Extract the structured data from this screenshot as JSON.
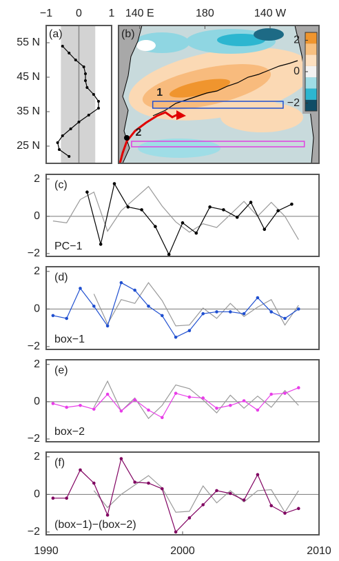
{
  "chart_data": [
    {
      "type": "profile",
      "panel_label": "(a)",
      "xlim": [
        -1,
        1
      ],
      "xticks": [
        {
          "value": -1,
          "label": "−1"
        },
        0,
        1
      ],
      "ylim": [
        20,
        60
      ],
      "yticks": [
        {
          "value": 25,
          "label": "25 N"
        },
        {
          "value": 35,
          "label": "35 N"
        },
        {
          "value": 45,
          "label": "45 N"
        },
        {
          "value": 55,
          "label": "55 N"
        }
      ],
      "shade": [
        -0.55,
        0.5
      ],
      "color": "#000000",
      "lats": [
        54,
        52,
        50,
        48,
        46,
        44,
        42,
        40,
        38,
        36,
        34,
        32,
        30,
        28,
        26,
        24,
        22
      ],
      "values": [
        -0.5,
        -0.3,
        -0.1,
        0.15,
        0.2,
        0.2,
        0.25,
        0.45,
        0.6,
        0.6,
        0.3,
        0.0,
        -0.25,
        -0.5,
        -0.65,
        -0.6,
        -0.3
      ]
    },
    {
      "type": "map",
      "panel_label": "(b)",
      "xlim": [
        127,
        250
      ],
      "xticks": [
        {
          "value": 140,
          "label": "140 E"
        },
        180,
        {
          "value": 220,
          "label": "140 W"
        }
      ],
      "ylim": [
        20,
        60
      ],
      "boxes": [
        {
          "label": "1",
          "color": "#2050d0",
          "lon": [
            148,
            228
          ],
          "lat": [
            36,
            38
          ]
        },
        {
          "label": "2",
          "color": "#e040e0",
          "lon": [
            135,
            241
          ],
          "lat": [
            24.8,
            26.4
          ]
        }
      ],
      "colorbar": {
        "lim": [
          -2.5,
          2.5
        ],
        "ticks": [
          {
            "value": -2,
            "label": "−2"
          },
          0,
          2
        ],
        "colors": [
          "#0f4d66",
          "#2cb6d0",
          "#9fdde6",
          "#f2f2f2",
          "#fde0c0",
          "#f8c080",
          "#f0952e"
        ]
      }
    },
    {
      "type": "line",
      "panel_label": "(c)",
      "label": "PC−1",
      "xlim": [
        1990,
        2010
      ],
      "ylim": [
        -2.15,
        2.25
      ],
      "yticks": [
        {
          "value": -2,
          "label": "−2"
        },
        0,
        2
      ],
      "hline": 0,
      "series": [
        {
          "color": "#999999",
          "markers": false,
          "x": [
            1990.5,
            1991.5,
            1992.5,
            1993.5,
            1994.5,
            1995.5,
            1996.5,
            1997.5,
            1998.5,
            1999.5,
            2000.5,
            2001.5,
            2002.5,
            2003.5,
            2004.5,
            2005.5,
            2006.5,
            2007.5,
            2008.5
          ],
          "values": [
            -0.25,
            -0.35,
            0.9,
            1.3,
            -0.8,
            0.3,
            0.95,
            1.6,
            0.55,
            -0.3,
            -0.85,
            -0.4,
            -0.6,
            0.1,
            0.8,
            0.0,
            0.75,
            0.0,
            -1.25
          ]
        },
        {
          "color": "#000000",
          "markers": true,
          "x": [
            1993,
            1994,
            1995,
            1996,
            1997,
            1998,
            1999,
            2000,
            2001,
            2002,
            2003,
            2004,
            2005,
            2006,
            2007,
            2008
          ],
          "values": [
            1.3,
            -1.5,
            1.75,
            0.5,
            0.35,
            -0.55,
            -2.05,
            -0.35,
            -0.9,
            0.5,
            0.35,
            -0.05,
            0.75,
            -0.7,
            0.3,
            0.65
          ]
        }
      ]
    },
    {
      "type": "line",
      "panel_label": "(d)",
      "label": "box−1",
      "xlim": [
        1990,
        2010
      ],
      "ylim": [
        -2.15,
        2.25
      ],
      "yticks": [
        {
          "value": -2,
          "label": "−2"
        },
        0,
        2
      ],
      "hline": 0,
      "series": [
        {
          "color": "#999999",
          "markers": false,
          "x": [
            1993.5,
            1994.5,
            1995.5,
            1996.5,
            1997.5,
            1998.5,
            1999.5,
            2000.5,
            2001.5,
            2002.5,
            2003.5,
            2004.5,
            2005.5,
            2006.5,
            2007.5,
            2008.5
          ],
          "values": [
            0.8,
            -0.8,
            0.5,
            0.3,
            1.4,
            0.45,
            -0.9,
            -0.85,
            0.05,
            -0.5,
            0.3,
            -0.4,
            0.1,
            0.5,
            -0.85,
            0.2
          ]
        },
        {
          "color": "#1f4fd0",
          "markers": true,
          "x": [
            1990.5,
            1991.5,
            1992.5,
            1993.5,
            1994.5,
            1995.5,
            1996.5,
            1997.5,
            1998.5,
            1999.5,
            2000.5,
            2001.5,
            2002.5,
            2003.5,
            2004.5,
            2005.5,
            2006.5,
            2007.5,
            2008.5
          ],
          "values": [
            -0.35,
            -0.5,
            1.1,
            0.15,
            -0.9,
            1.4,
            1.0,
            0.15,
            -0.35,
            -1.5,
            -1.15,
            -0.25,
            -0.15,
            -0.15,
            -0.25,
            0.6,
            -0.15,
            -0.5,
            0.0
          ]
        }
      ]
    },
    {
      "type": "line",
      "panel_label": "(e)",
      "label": "box−2",
      "xlim": [
        1990,
        2010
      ],
      "ylim": [
        -2.15,
        2.25
      ],
      "yticks": [
        {
          "value": -2,
          "label": "−2"
        },
        0,
        2
      ],
      "hline": 0,
      "series": [
        {
          "color": "#999999",
          "markers": false,
          "x": [
            1993.5,
            1994.5,
            1995.5,
            1996.5,
            1997.5,
            1998.5,
            1999.5,
            2000.5,
            2001.5,
            2002.5,
            2003.5,
            2004.5,
            2005.5,
            2006.5,
            2007.5,
            2008.5
          ],
          "values": [
            -0.3,
            1.1,
            -0.5,
            0.2,
            -0.9,
            -0.2,
            0.9,
            0.7,
            0.1,
            -0.6,
            0.35,
            -0.35,
            0.3,
            -0.3,
            0.6,
            -0.2
          ]
        },
        {
          "color": "#e83ee8",
          "markers": true,
          "x": [
            1990.5,
            1991.5,
            1992.5,
            1993.5,
            1994.5,
            1995.5,
            1996.5,
            1997.5,
            1998.5,
            1999.5,
            2000.5,
            2001.5,
            2002.5,
            2003.5,
            2004.5,
            2005.5,
            2006.5,
            2007.5,
            2008.5
          ],
          "values": [
            -0.1,
            -0.3,
            -0.2,
            -0.4,
            0.4,
            -0.5,
            0.1,
            -0.45,
            -0.85,
            0.45,
            0.25,
            0.2,
            -0.35,
            -0.2,
            0.05,
            -0.45,
            0.4,
            0.45,
            0.75
          ]
        }
      ]
    },
    {
      "type": "line",
      "panel_label": "(f)",
      "label": "(box−1)−(box−2)",
      "xlim": [
        1990,
        2010
      ],
      "ylim": [
        -2.15,
        2.25
      ],
      "xticks": [
        1990,
        2000,
        2010
      ],
      "yticks": [
        {
          "value": -2,
          "label": "−2"
        },
        0,
        2
      ],
      "hline": 0,
      "series": [
        {
          "color": "#999999",
          "markers": false,
          "x": [
            1993.5,
            1994.5,
            1995.5,
            1996.5,
            1997.5,
            1998.5,
            1999.5,
            2000.5,
            2001.5,
            2002.5,
            2003.5,
            2004.5,
            2005.5,
            2006.5,
            2007.5,
            2008.5
          ],
          "values": [
            0.2,
            -0.7,
            0.0,
            0.5,
            1.0,
            0.35,
            -0.95,
            -0.9,
            0.45,
            -0.45,
            0.2,
            -0.4,
            0.2,
            0.25,
            -0.95,
            0.2
          ]
        },
        {
          "color": "#800060",
          "markers": true,
          "x": [
            1990.5,
            1991.5,
            1992.5,
            1993.5,
            1994.5,
            1995.5,
            1996.5,
            1997.5,
            1998.5,
            1999.5,
            2000.5,
            2001.5,
            2002.5,
            2003.5,
            2004.5,
            2005.5,
            2006.5,
            2007.5,
            2008.5
          ],
          "values": [
            -0.2,
            -0.2,
            1.3,
            0.6,
            -1.1,
            1.9,
            0.65,
            0.6,
            0.3,
            -2.0,
            -1.25,
            -0.55,
            0.2,
            0.05,
            -0.3,
            1.05,
            -0.6,
            -1.0,
            -0.75
          ]
        }
      ]
    }
  ]
}
